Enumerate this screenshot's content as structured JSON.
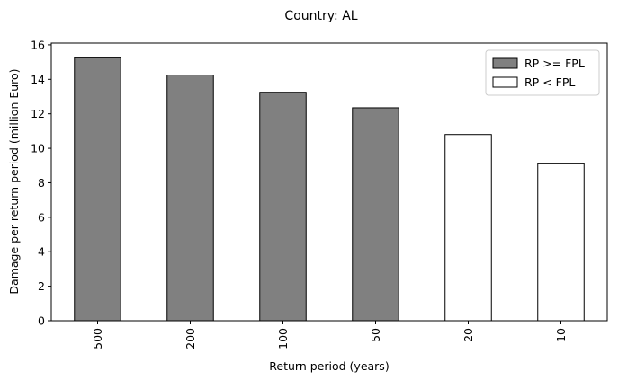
{
  "chart_data": {
    "type": "bar",
    "title": "Country: AL",
    "xlabel": "Return period (years)",
    "ylabel": "Damage per return period (million Euro)",
    "categories": [
      "500",
      "200",
      "100",
      "50",
      "20",
      "10"
    ],
    "values": [
      15.25,
      14.25,
      13.25,
      12.35,
      10.8,
      9.1
    ],
    "groups": [
      "RP >= FPL",
      "RP >= FPL",
      "RP >= FPL",
      "RP >= FPL",
      "RP < FPL",
      "RP < FPL"
    ],
    "ylim": [
      0,
      16.1
    ],
    "yticks": [
      0,
      2,
      4,
      6,
      8,
      10,
      12,
      14,
      16
    ],
    "grid": false,
    "legend_position": "top-right",
    "legend": [
      {
        "label": "RP >= FPL",
        "color": "#808080"
      },
      {
        "label": "RP < FPL",
        "color": "#ffffff"
      }
    ]
  }
}
